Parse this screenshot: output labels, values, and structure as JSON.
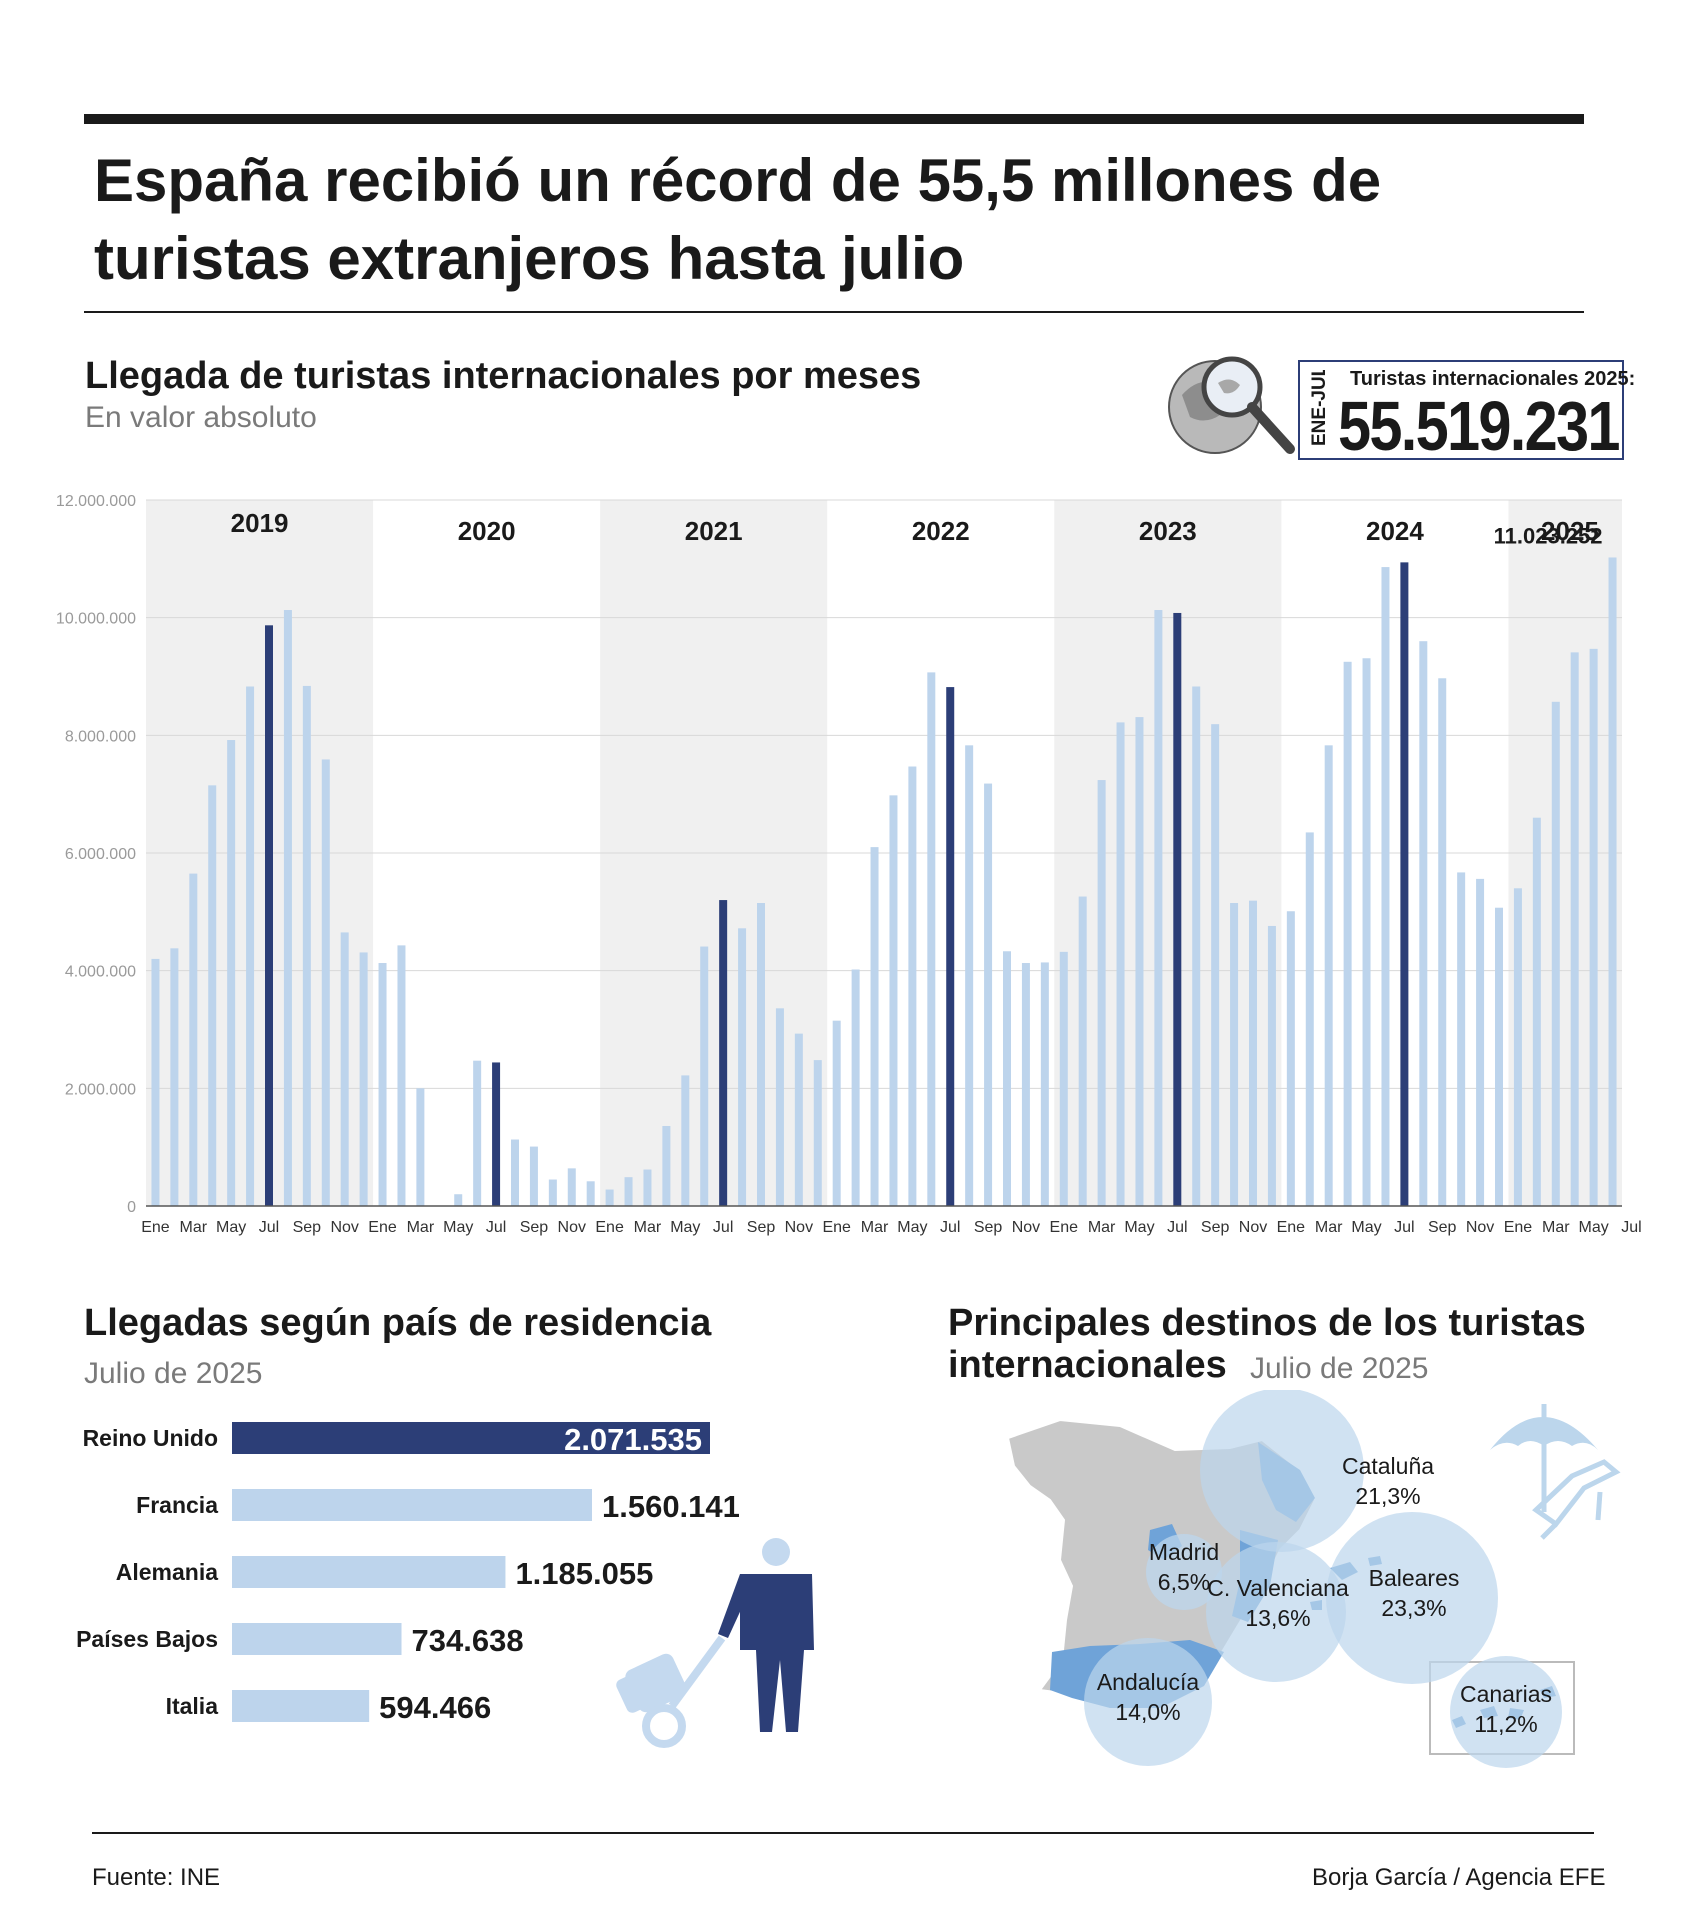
{
  "title": "España recibió un récord de 55,5 millones de turistas extranjeros hasta julio",
  "monthly": {
    "title": "Llegada de turistas internacionales por meses",
    "subtitle": "En valor absoluto"
  },
  "total": {
    "period": "ENE-JUL",
    "label": "Turistas internacionales 2025:",
    "value": "55.519.231"
  },
  "chart_data": [
    {
      "type": "bar",
      "title": "Llegada de turistas internacionales por meses",
      "subtitle": "En valor absoluto",
      "ylim": [
        0,
        12000000
      ],
      "yticks": [
        "0",
        "2.000.000",
        "4.000.000",
        "6.000.000",
        "8.000.000",
        "10.000.000",
        "12.000.000"
      ],
      "years": [
        "2019",
        "2020",
        "2021",
        "2022",
        "2023",
        "2024",
        "2025"
      ],
      "xtick_labels": [
        "Ene",
        "Mar",
        "May",
        "Jul",
        "Sep",
        "Nov",
        "Ene",
        "Mar",
        "May",
        "Jul",
        "Sep",
        "Nov",
        "Ene",
        "Mar",
        "May",
        "Jul",
        "Sep",
        "Nov",
        "Ene",
        "Mar",
        "May",
        "Jul",
        "Sep",
        "Nov",
        "Ene",
        "Mar",
        "May",
        "Jul",
        "Sep",
        "Nov",
        "Ene",
        "Mar",
        "May",
        "Jul",
        "Sep",
        "Nov",
        "Ene",
        "Mar",
        "May",
        "Jul"
      ],
      "series": [
        {
          "values": [
            [
              4200000,
              4380000,
              5650000,
              7150000,
              7920000,
              8830000,
              9870000,
              10130000,
              8840000,
              7590000,
              4650000,
              4310000
            ],
            [
              4130000,
              4430000,
              2000000,
              0,
              200000,
              2470000,
              2440000,
              1130000,
              1010000,
              450000,
              640000,
              420000
            ],
            [
              280000,
              490000,
              620000,
              1360000,
              2220000,
              4410000,
              5200000,
              4720000,
              5150000,
              3360000,
              2930000,
              2480000
            ],
            [
              3150000,
              4020000,
              6100000,
              6980000,
              7470000,
              9070000,
              8820000,
              7830000,
              7180000,
              4330000,
              4130000,
              4140000
            ],
            [
              4320000,
              5260000,
              7240000,
              8220000,
              8310000,
              10130000,
              10080000,
              8830000,
              8190000,
              5150000,
              5190000,
              4760000
            ],
            [
              5010000,
              6350000,
              7830000,
              9250000,
              9310000,
              10860000,
              10940000,
              9600000,
              8970000,
              5670000,
              5560000,
              5070000
            ],
            [
              5400000,
              6600000,
              8570000,
              9410000,
              9470000,
              11023252
            ]
          ]
        }
      ],
      "highlight_month": "Jul",
      "annotation": "11.023.252",
      "colors": {
        "bar": "#bdd4ec",
        "highlight": "#2c3e77",
        "band": "#f0f0f0"
      }
    },
    {
      "type": "bar",
      "orientation": "horizontal",
      "title": "Llegadas según país de residencia",
      "subtitle": "Julio de 2025",
      "categories": [
        "Reino Unido",
        "Francia",
        "Alemania",
        "Países Bajos",
        "Italia"
      ],
      "values": [
        2071535,
        1560141,
        1185055,
        734638,
        594466
      ],
      "value_labels": [
        "2.071.535",
        "1.560.141",
        "1.185.055",
        "734.638",
        "594.466"
      ],
      "colors": {
        "top": "#2c3e77",
        "rest": "#bdd4ec"
      }
    }
  ],
  "countries": {
    "title": "Llegadas según país de residencia",
    "subtitle": "Julio de 2025"
  },
  "destinations": {
    "title_line1": "Principales destinos de los turistas",
    "title_line2": "internacionales",
    "subtitle": "Julio de 2025",
    "items": [
      {
        "name": "Cataluña",
        "pct": "21,3%"
      },
      {
        "name": "Madrid",
        "pct": "6,5%"
      },
      {
        "name": "C. Valenciana",
        "pct": "13,6%"
      },
      {
        "name": "Baleares",
        "pct": "23,3%"
      },
      {
        "name": "Andalucía",
        "pct": "14,0%"
      },
      {
        "name": "Canarias",
        "pct": "11,2%"
      }
    ]
  },
  "footer": {
    "source": "Fuente: INE",
    "credit": "Borja García / Agencia EFE"
  }
}
